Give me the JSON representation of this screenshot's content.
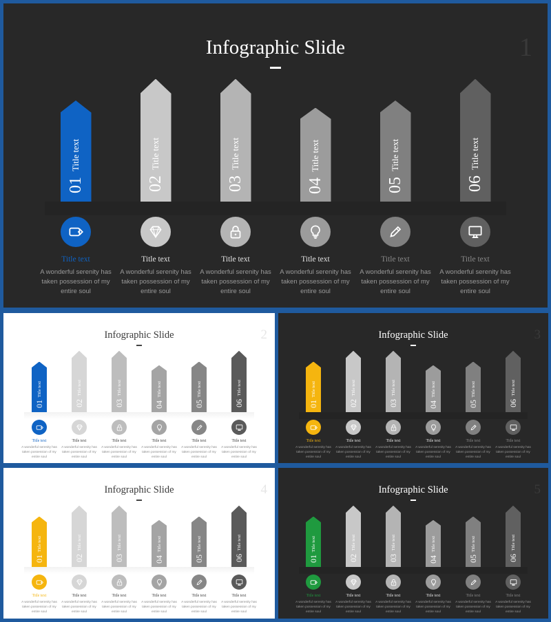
{
  "slides": [
    {
      "number": "1",
      "title": "Infographic Slide",
      "theme": "dark",
      "accent": "#0f63c4",
      "items": [
        {
          "num": "01",
          "label": "Title text",
          "title": "Title text",
          "desc": "A wonderful serenity has taken possession of my entire soul",
          "icon": "tag-icon",
          "color": "#0f63c4",
          "height": 0.7
        },
        {
          "num": "02",
          "label": "Title text",
          "title": "Title text",
          "desc": "A wonderful serenity has taken possession of my entire soul",
          "icon": "diamond-icon",
          "color": "#c8c8c8",
          "height": 0.85
        },
        {
          "num": "03",
          "label": "Title text",
          "title": "Title text",
          "desc": "A wonderful serenity has taken possession of my entire soul",
          "icon": "lock-icon",
          "color": "#b4b4b4",
          "height": 0.85
        },
        {
          "num": "04",
          "label": "Title text",
          "title": "Title text",
          "desc": "A wonderful serenity has taken possession of my entire soul",
          "icon": "lightbulb-icon",
          "color": "#9c9c9c",
          "height": 0.65
        },
        {
          "num": "05",
          "label": "Title text",
          "title": "Title text",
          "desc": "A wonderful serenity has taken possession of my entire soul",
          "icon": "pencil-icon",
          "color": "#808080",
          "height": 0.7
        },
        {
          "num": "06",
          "label": "Title text",
          "title": "Title text",
          "desc": "A wonderful serenity has taken possession of my entire soul",
          "icon": "monitor-icon",
          "color": "#606060",
          "height": 0.85
        }
      ]
    },
    {
      "number": "2",
      "title": "Infographic Slide",
      "theme": "light",
      "accent": "#0f63c4",
      "items": [
        {
          "num": "01",
          "label": "Title text",
          "title": "Title text",
          "desc": "A wonderful serenity has taken possession of my entire soul",
          "icon": "tag-icon",
          "color": "#0f63c4",
          "height": 0.7
        },
        {
          "num": "02",
          "label": "Title text",
          "title": "Title text",
          "desc": "A wonderful serenity has taken possession of my entire soul",
          "icon": "diamond-icon",
          "color": "#d6d6d6",
          "height": 0.85
        },
        {
          "num": "03",
          "label": "Title text",
          "title": "Title text",
          "desc": "A wonderful serenity has taken possession of my entire soul",
          "icon": "lock-icon",
          "color": "#bdbdbd",
          "height": 0.85
        },
        {
          "num": "04",
          "label": "Title text",
          "title": "Title text",
          "desc": "A wonderful serenity has taken possession of my entire soul",
          "icon": "lightbulb-icon",
          "color": "#a4a4a4",
          "height": 0.65
        },
        {
          "num": "05",
          "label": "Title text",
          "title": "Title text",
          "desc": "A wonderful serenity has taken possession of my entire soul",
          "icon": "pencil-icon",
          "color": "#868686",
          "height": 0.7
        },
        {
          "num": "06",
          "label": "Title text",
          "title": "Title text",
          "desc": "A wonderful serenity has taken possession of my entire soul",
          "icon": "monitor-icon",
          "color": "#5a5a5a",
          "height": 0.85
        }
      ]
    },
    {
      "number": "3",
      "title": "Infographic Slide",
      "theme": "dark",
      "accent": "#f5b50f",
      "items": [
        {
          "num": "01",
          "label": "Title text",
          "title": "Title text",
          "desc": "A wonderful serenity has taken possession of my entire soul",
          "icon": "tag-icon",
          "color": "#f5b50f",
          "height": 0.7
        },
        {
          "num": "02",
          "label": "Title text",
          "title": "Title text",
          "desc": "A wonderful serenity has taken possession of my entire soul",
          "icon": "diamond-icon",
          "color": "#c8c8c8",
          "height": 0.85
        },
        {
          "num": "03",
          "label": "Title text",
          "title": "Title text",
          "desc": "A wonderful serenity has taken possession of my entire soul",
          "icon": "lock-icon",
          "color": "#b4b4b4",
          "height": 0.85
        },
        {
          "num": "04",
          "label": "Title text",
          "title": "Title text",
          "desc": "A wonderful serenity has taken possession of my entire soul",
          "icon": "lightbulb-icon",
          "color": "#9c9c9c",
          "height": 0.65
        },
        {
          "num": "05",
          "label": "Title text",
          "title": "Title text",
          "desc": "A wonderful serenity has taken possession of my entire soul",
          "icon": "pencil-icon",
          "color": "#808080",
          "height": 0.7
        },
        {
          "num": "06",
          "label": "Title text",
          "title": "Title text",
          "desc": "A wonderful serenity has taken possession of my entire soul",
          "icon": "monitor-icon",
          "color": "#606060",
          "height": 0.85
        }
      ]
    },
    {
      "number": "4",
      "title": "Infographic Slide",
      "theme": "light",
      "accent": "#f5b50f",
      "items": [
        {
          "num": "01",
          "label": "Title text",
          "title": "Title text",
          "desc": "A wonderful serenity has taken possession of my entire soul",
          "icon": "tag-icon",
          "color": "#f5b50f",
          "height": 0.7
        },
        {
          "num": "02",
          "label": "Title text",
          "title": "Title text",
          "desc": "A wonderful serenity has taken possession of my entire soul",
          "icon": "diamond-icon",
          "color": "#d6d6d6",
          "height": 0.85
        },
        {
          "num": "03",
          "label": "Title text",
          "title": "Title text",
          "desc": "A wonderful serenity has taken possession of my entire soul",
          "icon": "lock-icon",
          "color": "#bdbdbd",
          "height": 0.85
        },
        {
          "num": "04",
          "label": "Title text",
          "title": "Title text",
          "desc": "A wonderful serenity has taken possession of my entire soul",
          "icon": "lightbulb-icon",
          "color": "#a4a4a4",
          "height": 0.65
        },
        {
          "num": "05",
          "label": "Title text",
          "title": "Title text",
          "desc": "A wonderful serenity has taken possession of my entire soul",
          "icon": "pencil-icon",
          "color": "#868686",
          "height": 0.7
        },
        {
          "num": "06",
          "label": "Title text",
          "title": "Title text",
          "desc": "A wonderful serenity has taken possession of my entire soul",
          "icon": "monitor-icon",
          "color": "#5a5a5a",
          "height": 0.85
        }
      ]
    },
    {
      "number": "5",
      "title": "Infographic Slide",
      "theme": "dark",
      "accent": "#1f9a3f",
      "items": [
        {
          "num": "01",
          "label": "Title text",
          "title": "Title text",
          "desc": "A wonderful serenity has taken possession of my entire soul",
          "icon": "tag-icon",
          "color": "#1f9a3f",
          "height": 0.7
        },
        {
          "num": "02",
          "label": "Title text",
          "title": "Title text",
          "desc": "A wonderful serenity has taken possession of my entire soul",
          "icon": "diamond-icon",
          "color": "#c8c8c8",
          "height": 0.85
        },
        {
          "num": "03",
          "label": "Title text",
          "title": "Title text",
          "desc": "A wonderful serenity has taken possession of my entire soul",
          "icon": "lock-icon",
          "color": "#b4b4b4",
          "height": 0.85
        },
        {
          "num": "04",
          "label": "Title text",
          "title": "Title text",
          "desc": "A wonderful serenity has taken possession of my entire soul",
          "icon": "lightbulb-icon",
          "color": "#9c9c9c",
          "height": 0.65
        },
        {
          "num": "05",
          "label": "Title text",
          "title": "Title text",
          "desc": "A wonderful serenity has taken possession of my entire soul",
          "icon": "pencil-icon",
          "color": "#808080",
          "height": 0.7
        },
        {
          "num": "06",
          "label": "Title text",
          "title": "Title text",
          "desc": "A wonderful serenity has taken possession of my entire soul",
          "icon": "monitor-icon",
          "color": "#606060",
          "height": 0.85
        }
      ]
    }
  ]
}
